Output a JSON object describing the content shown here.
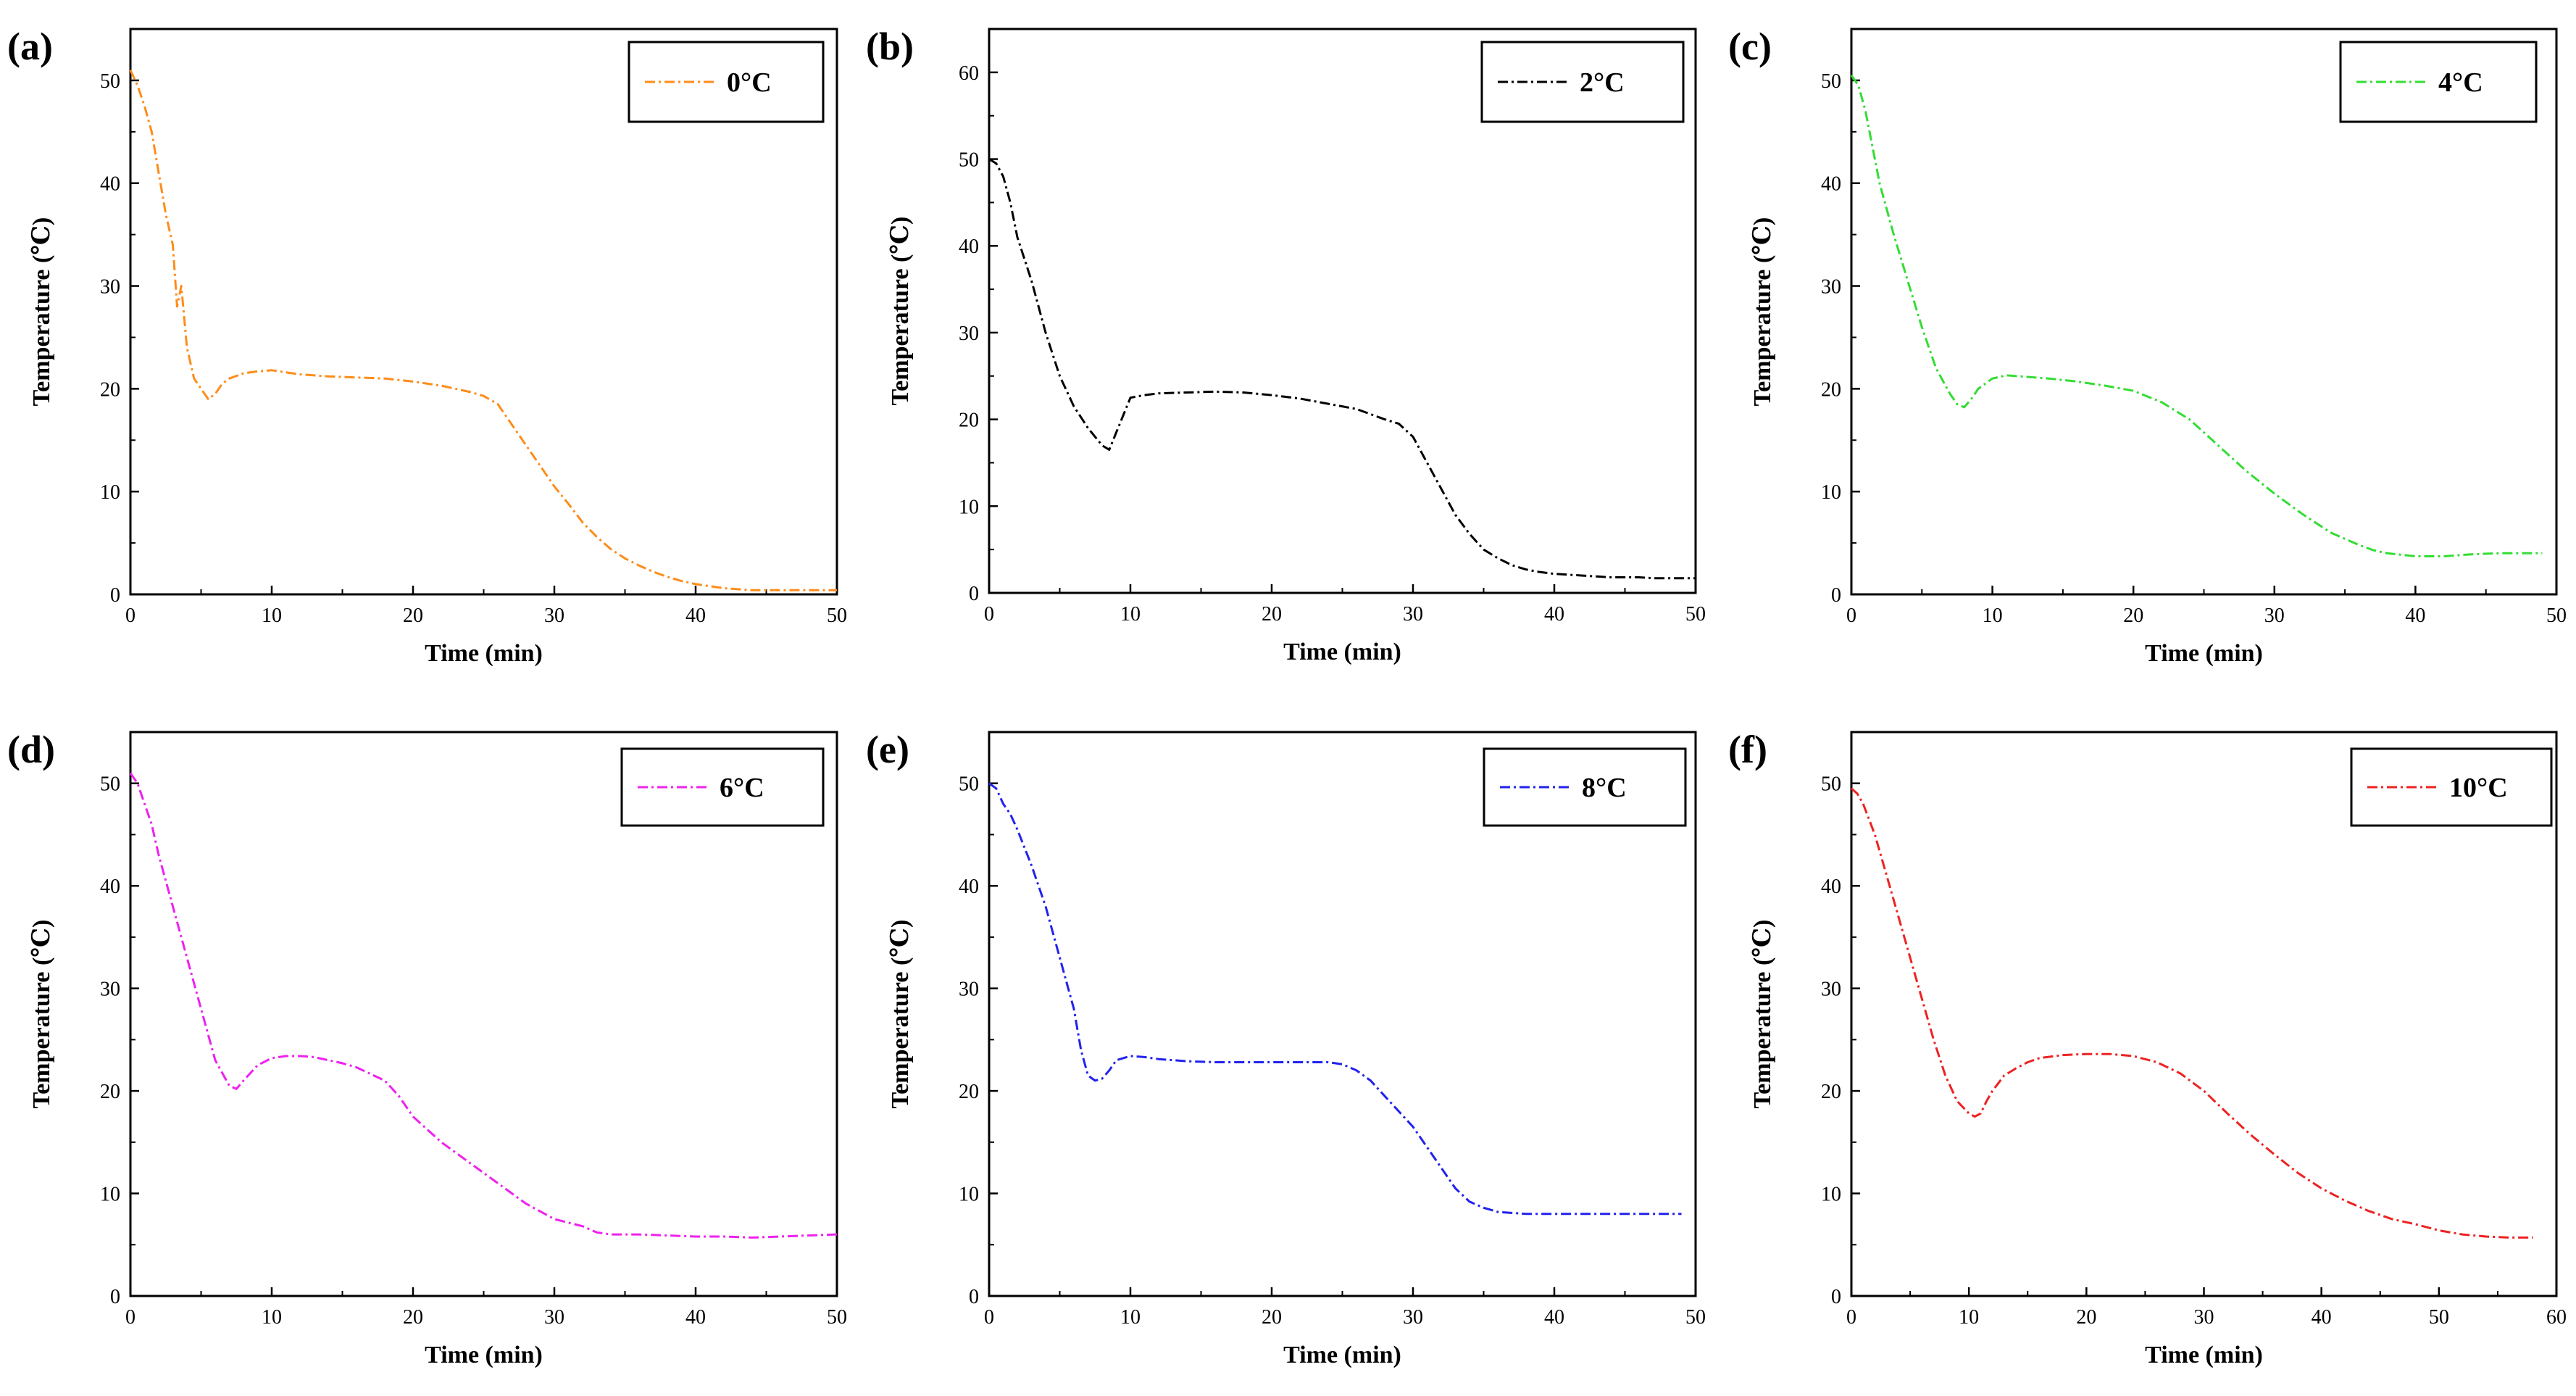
{
  "chart_data": [
    {
      "type": "line",
      "panel_label": "(a)",
      "xlabel": "Time (min)",
      "ylabel": "Temperature (℃)",
      "xlim": [
        0,
        50
      ],
      "ylim": [
        0,
        55
      ],
      "xticks": [
        0,
        10,
        20,
        30,
        40,
        50
      ],
      "yticks": [
        0,
        10,
        20,
        30,
        40,
        50
      ],
      "legend_position": "top-right",
      "series": [
        {
          "name": "0°C",
          "color": "#ff8c1a",
          "x": [
            0,
            0.5,
            1,
            1.5,
            2,
            2.5,
            3,
            3.3,
            3.6,
            4,
            4.5,
            5,
            5.5,
            6,
            6.5,
            7,
            8,
            9,
            10,
            11,
            12,
            14,
            16,
            18,
            20,
            22,
            24,
            25,
            26,
            27,
            28,
            29,
            30,
            31,
            32,
            33,
            34,
            35,
            36,
            37,
            38,
            39,
            40,
            41,
            42,
            43,
            44,
            45,
            46,
            47,
            48,
            49,
            50
          ],
          "y": [
            51,
            49.5,
            47.5,
            45,
            41,
            37,
            34,
            28,
            30,
            24,
            21,
            20,
            19,
            19.5,
            20.5,
            21,
            21.5,
            21.7,
            21.8,
            21.6,
            21.4,
            21.2,
            21.1,
            21,
            20.7,
            20.3,
            19.7,
            19.3,
            18.5,
            16.5,
            14.5,
            12.5,
            10.5,
            8.8,
            7,
            5.6,
            4.4,
            3.5,
            2.8,
            2.2,
            1.7,
            1.3,
            1,
            0.8,
            0.6,
            0.5,
            0.4,
            0.4,
            0.4,
            0.4,
            0.4,
            0.4,
            0.4
          ]
        }
      ]
    },
    {
      "type": "line",
      "panel_label": "(b)",
      "xlabel": "Time  (min)",
      "ylabel": "Temperature  (℃)",
      "xlim": [
        0,
        50
      ],
      "ylim": [
        0,
        65
      ],
      "xticks": [
        0,
        10,
        20,
        30,
        40,
        50
      ],
      "yticks": [
        0,
        10,
        20,
        30,
        40,
        50,
        60
      ],
      "legend_position": "top-right",
      "series": [
        {
          "name": "2°C",
          "color": "#000000",
          "x": [
            0,
            0.5,
            1,
            1.5,
            2,
            3,
            4,
            5,
            6,
            7,
            8,
            8.5,
            9,
            9.5,
            10,
            11,
            12,
            14,
            16,
            18,
            20,
            22,
            24,
            26,
            28,
            29,
            30,
            31,
            32,
            33,
            34,
            35,
            36,
            37,
            38,
            39,
            40,
            41,
            42,
            43,
            44,
            45,
            46,
            47,
            48,
            49,
            50
          ],
          "y": [
            50,
            49.5,
            48,
            45,
            41,
            36,
            30,
            25,
            21.5,
            19,
            17,
            16.5,
            18.5,
            20.5,
            22.5,
            22.8,
            23,
            23.1,
            23.2,
            23.1,
            22.8,
            22.4,
            21.8,
            21.2,
            20,
            19.5,
            18,
            15,
            12,
            9,
            6.8,
            5,
            4,
            3.2,
            2.7,
            2.4,
            2.2,
            2.1,
            2,
            1.9,
            1.8,
            1.8,
            1.8,
            1.7,
            1.7,
            1.7,
            1.7
          ]
        }
      ]
    },
    {
      "type": "line",
      "panel_label": "(c)",
      "xlabel": "Time (min)",
      "ylabel": "Temperature (℃)",
      "xlim": [
        0,
        50
      ],
      "ylim": [
        0,
        55
      ],
      "xticks": [
        0,
        10,
        20,
        30,
        40,
        50
      ],
      "yticks": [
        0,
        10,
        20,
        30,
        40,
        50
      ],
      "legend_position": "top-right",
      "series": [
        {
          "name": "4°C",
          "color": "#33dd33",
          "x": [
            0,
            0.5,
            1,
            1.5,
            2,
            3,
            4,
            5,
            6,
            7,
            7.5,
            8,
            8.5,
            9,
            10,
            11,
            12,
            14,
            16,
            18,
            20,
            22,
            24,
            26,
            28,
            30,
            32,
            34,
            36,
            37,
            38,
            40,
            42,
            44,
            46,
            48,
            49
          ],
          "y": [
            50.5,
            49.5,
            47,
            43.5,
            40,
            35,
            30.5,
            26,
            22,
            19.5,
            18.5,
            18.2,
            19,
            20,
            21,
            21.3,
            21.2,
            21,
            20.7,
            20.3,
            19.8,
            18.7,
            17,
            14.5,
            12,
            9.8,
            7.8,
            6,
            4.8,
            4.3,
            4,
            3.7,
            3.7,
            3.9,
            4,
            4,
            4
          ]
        }
      ]
    },
    {
      "type": "line",
      "panel_label": "(d)",
      "xlabel": "Time (min)",
      "ylabel": "Temperature (℃)",
      "xlim": [
        0,
        50
      ],
      "ylim": [
        0,
        55
      ],
      "xticks": [
        0,
        10,
        20,
        30,
        40,
        50
      ],
      "yticks": [
        0,
        10,
        20,
        30,
        40,
        50
      ],
      "legend_position": "top-right",
      "series": [
        {
          "name": "6°C",
          "color": "#ee22ee",
          "x": [
            0,
            0.5,
            1,
            1.5,
            2,
            3,
            4,
            5,
            6,
            7,
            7.5,
            8,
            9,
            10,
            11,
            12,
            13,
            14,
            15,
            16,
            18,
            19,
            20,
            22,
            24,
            26,
            28,
            30,
            32,
            33,
            34,
            36,
            38,
            40,
            42,
            44,
            46,
            48,
            50
          ],
          "y": [
            51,
            50,
            48,
            46,
            43,
            38,
            33,
            28,
            23,
            20.5,
            20.2,
            21,
            22.5,
            23.2,
            23.4,
            23.4,
            23.3,
            23,
            22.7,
            22.3,
            21,
            19.5,
            17.5,
            15,
            13,
            11,
            9,
            7.5,
            6.8,
            6.2,
            6,
            6,
            5.9,
            5.8,
            5.8,
            5.7,
            5.8,
            5.9,
            6
          ]
        }
      ]
    },
    {
      "type": "line",
      "panel_label": "(e)",
      "xlabel": "Time (min)",
      "ylabel": "Temperature (℃)",
      "xlim": [
        0,
        50
      ],
      "ylim": [
        0,
        55
      ],
      "xticks": [
        0,
        10,
        20,
        30,
        40,
        50
      ],
      "yticks": [
        0,
        10,
        20,
        30,
        40,
        50
      ],
      "legend_position": "top-right",
      "series": [
        {
          "name": "8°C",
          "color": "#2222ee",
          "x": [
            0,
            0.5,
            1,
            1.5,
            2,
            3,
            4,
            5,
            6,
            6.5,
            7,
            7.5,
            8,
            8.5,
            9,
            10,
            11,
            12,
            14,
            16,
            18,
            20,
            22,
            24,
            25,
            26,
            27,
            28,
            29,
            30,
            31,
            32,
            33,
            34,
            35,
            36,
            38,
            40,
            42,
            44,
            46,
            48,
            49
          ],
          "y": [
            50,
            49.5,
            48,
            47,
            45.5,
            42,
            38,
            33,
            28,
            24,
            21.5,
            21,
            21.2,
            22,
            23,
            23.4,
            23.3,
            23.1,
            22.9,
            22.8,
            22.8,
            22.8,
            22.8,
            22.8,
            22.6,
            22,
            21,
            19.5,
            18,
            16.5,
            14.5,
            12.5,
            10.5,
            9.2,
            8.6,
            8.2,
            8,
            8,
            8,
            8,
            8,
            8,
            8
          ]
        }
      ]
    },
    {
      "type": "line",
      "panel_label": "(f)",
      "xlabel": "Time (min)",
      "ylabel": "Temperature (℃)",
      "xlim": [
        0,
        60
      ],
      "ylim": [
        0,
        55
      ],
      "xticks": [
        0,
        10,
        20,
        30,
        40,
        50,
        60
      ],
      "yticks": [
        0,
        10,
        20,
        30,
        40,
        50
      ],
      "legend_position": "top-right",
      "series": [
        {
          "name": "10°C",
          "color": "#ee2222",
          "x": [
            0,
            0.5,
            1,
            2,
            3,
            4,
            5,
            6,
            7,
            8,
            9,
            10,
            10.5,
            11,
            11.5,
            12,
            13,
            14,
            15,
            16,
            18,
            20,
            22,
            24,
            26,
            28,
            30,
            32,
            34,
            36,
            38,
            40,
            42,
            44,
            46,
            48,
            50,
            52,
            54,
            56,
            58
          ],
          "y": [
            49.5,
            49,
            48,
            45,
            41,
            37,
            33,
            29,
            25,
            21.5,
            19,
            17.8,
            17.5,
            17.8,
            19,
            20,
            21.5,
            22.2,
            22.8,
            23.2,
            23.5,
            23.6,
            23.6,
            23.4,
            22.8,
            21.7,
            20,
            17.8,
            15.7,
            13.8,
            12,
            10.5,
            9.3,
            8.3,
            7.5,
            7,
            6.4,
            6,
            5.8,
            5.7,
            5.7
          ]
        }
      ]
    }
  ]
}
